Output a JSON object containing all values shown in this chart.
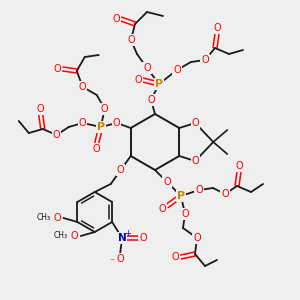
{
  "bg_color": "#efefef",
  "C": "#1a1a1a",
  "O": "#ff0000",
  "P": "#cc8800",
  "N": "#0000cc",
  "bond_color": "#1a1a1a"
}
